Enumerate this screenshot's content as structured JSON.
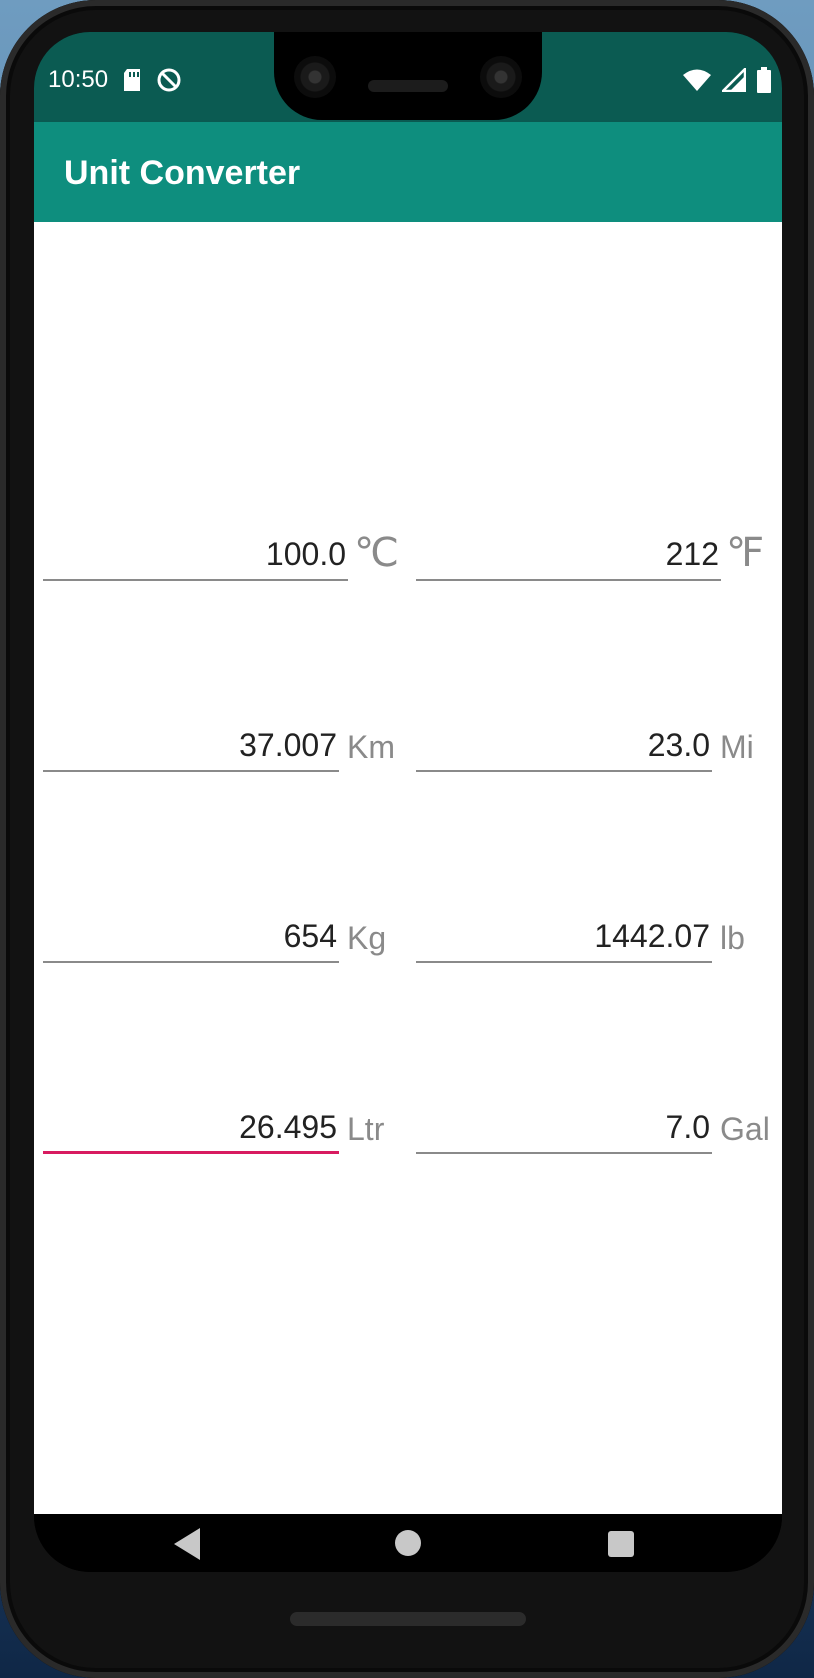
{
  "status_bar": {
    "time": "10:50",
    "icons_left": [
      "sd-card-icon",
      "do-not-disturb-icon"
    ],
    "icons_right": [
      "wifi-icon",
      "signal-icon",
      "battery-icon"
    ]
  },
  "app_bar": {
    "title": "Unit Converter",
    "color": "#0e8e7e"
  },
  "conversions": [
    {
      "left_value": "100.0",
      "left_unit": "℃",
      "right_value": "212",
      "right_unit": "℉"
    },
    {
      "left_value": "37.007",
      "left_unit": "Km",
      "right_value": "23.0",
      "right_unit": "Mi"
    },
    {
      "left_value": "654",
      "left_unit": "Kg",
      "right_value": "1442.07",
      "right_unit": "lb"
    },
    {
      "left_value": "26.495",
      "left_unit": "Ltr",
      "right_value": "7.0",
      "right_unit": "Gal"
    }
  ],
  "focused_field": "liters",
  "accent_color": "#d81b60",
  "nav_bar": {
    "buttons": [
      "back-icon",
      "home-icon",
      "recent-apps-icon"
    ]
  }
}
